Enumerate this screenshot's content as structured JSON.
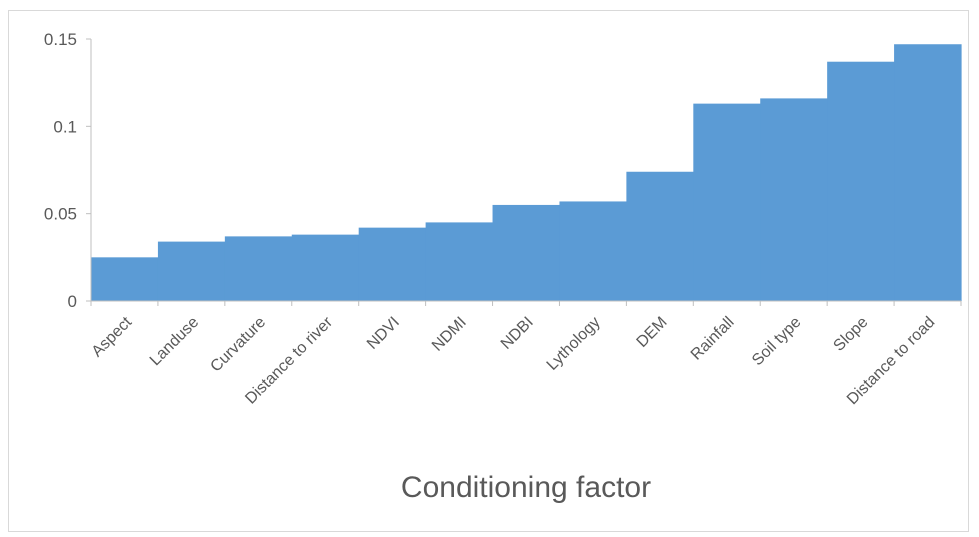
{
  "chart_data": {
    "type": "bar",
    "categories": [
      "Aspect",
      "Landuse",
      "Curvature",
      "Distance to river",
      "NDVI",
      "NDMI",
      "NDBI",
      "Lythology",
      "DEM",
      "Rainfall",
      "Soil type",
      "Slope",
      "Distance to road"
    ],
    "values": [
      0.025,
      0.034,
      0.037,
      0.038,
      0.042,
      0.045,
      0.055,
      0.057,
      0.074,
      0.113,
      0.116,
      0.137,
      0.147
    ],
    "title": "",
    "xlabel": "Conditioning factor",
    "ylabel": "",
    "ylim": [
      0,
      0.15
    ],
    "yticks": [
      0,
      0.05,
      0.1,
      0.15
    ],
    "ytick_labels": [
      "0",
      "0.05",
      "0.1",
      "0.15"
    ],
    "grid": false,
    "legend": "none",
    "bar_color": "#5b9bd5",
    "axis_color": "#bfbfbf",
    "text_color": "#595959"
  }
}
